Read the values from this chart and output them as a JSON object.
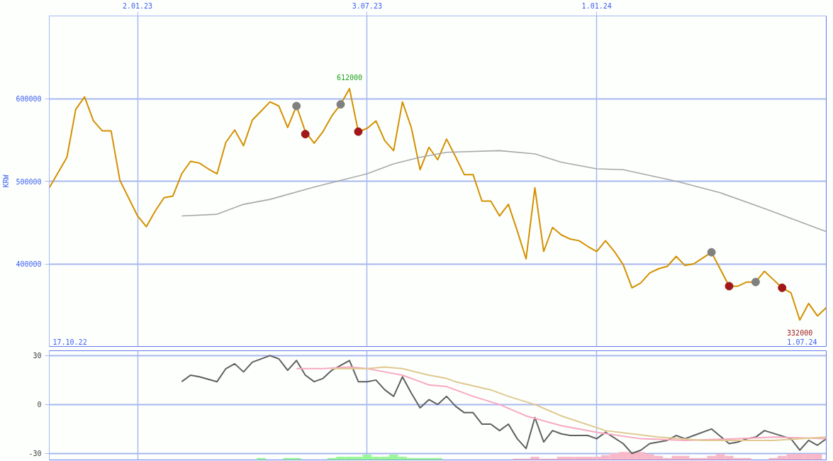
{
  "chart_data": [
    {
      "type": "line",
      "ylabel": "KRW",
      "xlim": [
        "2022-10-24",
        "2024-07-01"
      ],
      "ylim": [
        300000,
        700000
      ],
      "xticks": [
        {
          "value": "2023-01-02",
          "label": "2.01.23"
        },
        {
          "value": "2023-07-03",
          "label": "3.07.23"
        },
        {
          "value": "2024-01-01",
          "label": "1.01.24"
        }
      ],
      "yticks": [
        400000,
        500000,
        600000
      ],
      "grid": true,
      "line_style": "solid",
      "annotations": [
        {
          "text": "612000",
          "x": "2023-06-19",
          "y": 612000
        },
        {
          "text": "332000",
          "x": "2024-06-10",
          "y": 332000
        },
        "17.10.22",
        "1.07.24"
      ],
      "series": [
        {
          "color": "#d49000",
          "x": [
            "2022-10-24",
            "2022-11-07",
            "2022-11-14",
            "2022-11-21",
            "2022-11-28",
            "2022-12-05",
            "2022-12-12",
            "2022-12-19",
            "2023-01-02",
            "2023-01-09",
            "2023-01-16",
            "2023-01-23",
            "2023-01-30",
            "2023-02-06",
            "2023-02-13",
            "2023-02-20",
            "2023-02-27",
            "2023-03-06",
            "2023-03-13",
            "2023-03-20",
            "2023-03-27",
            "2023-04-03",
            "2023-04-10",
            "2023-04-17",
            "2023-04-24",
            "2023-05-01",
            "2023-05-08",
            "2023-05-15",
            "2023-05-22",
            "2023-05-29",
            "2023-06-05",
            "2023-06-12",
            "2023-06-19",
            "2023-06-26",
            "2023-07-03",
            "2023-07-10",
            "2023-07-17",
            "2023-07-24",
            "2023-07-31",
            "2023-08-07",
            "2023-08-14",
            "2023-08-21",
            "2023-08-28",
            "2023-09-04",
            "2023-09-11",
            "2023-09-18",
            "2023-09-25",
            "2023-10-02",
            "2023-10-09",
            "2023-10-16",
            "2023-10-23",
            "2023-10-30",
            "2023-11-06",
            "2023-11-13",
            "2023-11-20",
            "2023-11-27",
            "2023-12-04",
            "2023-12-11",
            "2023-12-18",
            "2023-12-25",
            "2024-01-01",
            "2024-01-08",
            "2024-01-15",
            "2024-01-22",
            "2024-01-29",
            "2024-02-05",
            "2024-02-12",
            "2024-02-19",
            "2024-02-26",
            "2024-03-04",
            "2024-03-11",
            "2024-03-18",
            "2024-03-25",
            "2024-04-01",
            "2024-04-15",
            "2024-04-22",
            "2024-04-29",
            "2024-05-06",
            "2024-05-13",
            "2024-05-20",
            "2024-05-27",
            "2024-06-03",
            "2024-06-10",
            "2024-06-17",
            "2024-06-24",
            "2024-07-01"
          ],
          "values": [
            492000,
            529000,
            587000,
            602000,
            573000,
            561000,
            561000,
            501000,
            458000,
            445000,
            464000,
            480000,
            482000,
            509000,
            524000,
            522000,
            515000,
            509000,
            547000,
            562000,
            543000,
            574000,
            585000,
            596000,
            591000,
            565000,
            591000,
            560000,
            546000,
            560000,
            579000,
            593000,
            612000,
            560000,
            564000,
            573000,
            549000,
            537000,
            596000,
            565000,
            514000,
            541000,
            526000,
            551000,
            530000,
            508000,
            508000,
            476000,
            476000,
            458000,
            472000,
            440000,
            406000,
            492000,
            415000,
            444000,
            435000,
            430000,
            428000,
            421000,
            415000,
            428000,
            415000,
            399000,
            371000,
            377000,
            389000,
            394000,
            397000,
            409000,
            398000,
            400000,
            407000,
            414000,
            373000,
            373000,
            378000,
            378000,
            391000,
            381000,
            371000,
            365000,
            332000,
            352000,
            337000,
            347000
          ]
        },
        {
          "color": "#a8a8a8",
          "x": [
            "2023-02-06",
            "2023-03-06",
            "2023-03-27",
            "2023-04-17",
            "2023-05-22",
            "2023-07-03",
            "2023-07-24",
            "2023-08-14",
            "2023-09-04",
            "2023-10-16",
            "2023-11-13",
            "2023-12-04",
            "2024-01-01",
            "2024-01-22",
            "2024-03-04",
            "2024-04-08",
            "2024-05-13",
            "2024-06-17",
            "2024-07-01"
          ],
          "values": [
            458000,
            460000,
            472000,
            478000,
            493000,
            509000,
            521000,
            529000,
            535000,
            537000,
            533000,
            523000,
            515000,
            514000,
            500000,
            486000,
            467000,
            447000,
            439000
          ]
        },
        {
          "type": "scatter",
          "marker": "circle",
          "color": "#808080",
          "x": [
            "2023-05-08",
            "2023-06-12",
            "2024-04-01",
            "2024-05-06"
          ],
          "values": [
            591000,
            593000,
            414000,
            378000
          ]
        },
        {
          "type": "scatter",
          "marker": "circle",
          "color": "#a01818",
          "x": [
            "2023-05-15",
            "2023-06-26",
            "2024-04-15",
            "2024-05-27"
          ],
          "values": [
            557000,
            560000,
            373000,
            371000
          ]
        }
      ]
    },
    {
      "type": "line",
      "xlim": [
        "2022-10-24",
        "2024-07-01"
      ],
      "ylim": [
        -34,
        33
      ],
      "xticks": [
        {
          "value": "2023-01-02",
          "label": null
        },
        {
          "value": "2023-07-03",
          "label": null
        },
        {
          "value": "2024-01-01",
          "label": null
        }
      ],
      "yticks": [
        -30,
        0,
        30
      ],
      "tick_labels": "y",
      "grid": true,
      "line_style": "solid",
      "series": [
        {
          "type": "bar",
          "color": "#98f898",
          "x": [
            "2023-04-10",
            "2023-05-01",
            "2023-05-08",
            "2023-06-05",
            "2023-06-12",
            "2023-06-19",
            "2023-06-26",
            "2023-07-03",
            "2023-07-10",
            "2023-07-17",
            "2023-07-24",
            "2023-07-31",
            "2023-08-07",
            "2023-08-14",
            "2023-08-21",
            "2023-08-28"
          ],
          "base": [
            -34,
            -34,
            -34,
            -34,
            -34,
            -34,
            -34,
            -34,
            -34,
            -34,
            -34,
            -34,
            -34,
            -34,
            -34,
            -34
          ],
          "values": [
            1.2,
            1.2,
            1.2,
            1.2,
            2,
            2,
            2,
            3.3,
            2,
            2,
            3.3,
            2,
            1.2,
            1.2,
            1.2,
            1.2
          ]
        },
        {
          "type": "bar",
          "color": "#f8b8c8",
          "x": [
            "2023-10-30",
            "2023-11-06",
            "2023-11-13",
            "2023-11-20",
            "2023-11-27",
            "2023-12-04",
            "2023-12-11",
            "2023-12-18",
            "2023-12-25",
            "2024-01-01",
            "2024-01-08",
            "2024-01-15",
            "2024-01-22",
            "2024-01-29",
            "2024-02-05",
            "2024-02-12",
            "2024-02-19",
            "2024-02-26",
            "2024-03-04",
            "2024-03-11",
            "2024-03-18",
            "2024-03-25",
            "2024-04-01",
            "2024-04-08",
            "2024-04-15",
            "2024-04-22",
            "2024-04-29",
            "2024-05-20",
            "2024-05-27",
            "2024-06-03",
            "2024-06-10",
            "2024-06-17",
            "2024-06-24"
          ],
          "base": [
            -34,
            -34,
            -34,
            -34,
            -34,
            -34,
            -34,
            -34,
            -34,
            -34,
            -34,
            -34,
            -34,
            -34,
            -34,
            -34,
            -34,
            -34,
            -34,
            -34,
            -34,
            -34,
            -34,
            -34,
            -34,
            -34,
            -34,
            -34,
            -34,
            -34,
            -34,
            -34,
            -34
          ],
          "values": [
            0.8,
            0.8,
            2,
            0.8,
            0.8,
            2,
            2,
            2,
            2,
            2,
            2.9,
            4.1,
            4.9,
            4.9,
            4.9,
            3.7,
            2.5,
            1.2,
            2.5,
            2.5,
            1.2,
            1.2,
            2.5,
            3.7,
            2.5,
            1.2,
            1.2,
            1.2,
            2.5,
            3.7,
            3.7,
            3.7,
            3.7
          ]
        },
        {
          "color": "#606060",
          "x": [
            "2023-02-06",
            "2023-02-13",
            "2023-02-20",
            "2023-03-06",
            "2023-03-13",
            "2023-03-20",
            "2023-03-27",
            "2023-04-03",
            "2023-04-17",
            "2023-04-24",
            "2023-05-01",
            "2023-05-08",
            "2023-05-15",
            "2023-05-22",
            "2023-05-29",
            "2023-06-05",
            "2023-06-19",
            "2023-06-26",
            "2023-07-03",
            "2023-07-10",
            "2023-07-17",
            "2023-07-24",
            "2023-07-31",
            "2023-08-07",
            "2023-08-14",
            "2023-08-21",
            "2023-08-28",
            "2023-09-04",
            "2023-09-11",
            "2023-09-18",
            "2023-09-25",
            "2023-10-02",
            "2023-10-09",
            "2023-10-16",
            "2023-10-23",
            "2023-10-30",
            "2023-11-06",
            "2023-11-13",
            "2023-11-20",
            "2023-11-27",
            "2023-12-04",
            "2023-12-11",
            "2023-12-25",
            "2024-01-01",
            "2024-01-08",
            "2024-01-22",
            "2024-01-29",
            "2024-02-05",
            "2024-02-12",
            "2024-02-26",
            "2024-03-04",
            "2024-03-11",
            "2024-03-18",
            "2024-04-01",
            "2024-04-15",
            "2024-04-22",
            "2024-04-29",
            "2024-05-06",
            "2024-05-13",
            "2024-06-03",
            "2024-06-10",
            "2024-06-17",
            "2024-06-24",
            "2024-07-01"
          ],
          "values": [
            14,
            18,
            17,
            14,
            22,
            25,
            20,
            26,
            30,
            28,
            21,
            27,
            18,
            14,
            16,
            21,
            27,
            14,
            14,
            15,
            9,
            5,
            17,
            7,
            -2,
            3,
            0,
            5,
            -1,
            -5,
            -5,
            -12,
            -12,
            -16,
            -12,
            -21,
            -27,
            -8,
            -23,
            -16,
            -18,
            -19,
            -19,
            -21,
            -17,
            -24,
            -30,
            -28,
            -24,
            -22,
            -19,
            -21,
            -19,
            -15,
            -24,
            -23,
            -21,
            -20,
            -16,
            -21,
            -28,
            -22,
            -25,
            -21
          ]
        },
        {
          "color": "#f8a8c0",
          "x": [
            "2023-05-08",
            "2023-05-29",
            "2023-06-19",
            "2023-07-03",
            "2023-07-17",
            "2023-07-31",
            "2023-08-14",
            "2023-08-21",
            "2023-09-04",
            "2023-09-11",
            "2023-09-25",
            "2023-10-16",
            "2023-11-06",
            "2023-12-04",
            "2024-01-01",
            "2024-02-05",
            "2024-03-11",
            "2024-04-22",
            "2024-05-20",
            "2024-07-01"
          ],
          "values": [
            22,
            22,
            23,
            22,
            20,
            18,
            14,
            12,
            11,
            9,
            5,
            0,
            -7,
            -13,
            -17,
            -21,
            -22,
            -21,
            -20,
            -21
          ]
        },
        {
          "color": "#e0c890",
          "x": [
            "2023-06-05",
            "2023-07-03",
            "2023-07-17",
            "2023-07-31",
            "2023-08-21",
            "2023-09-04",
            "2023-09-11",
            "2023-10-09",
            "2023-10-23",
            "2023-11-13",
            "2023-12-04",
            "2024-01-08",
            "2024-02-19",
            "2024-03-25",
            "2024-04-22",
            "2024-05-20",
            "2024-07-01"
          ],
          "values": [
            22,
            22,
            23,
            22,
            18,
            16,
            14,
            9,
            5,
            0,
            -7,
            -16,
            -20,
            -22,
            -22,
            -22,
            -20
          ]
        }
      ]
    }
  ]
}
